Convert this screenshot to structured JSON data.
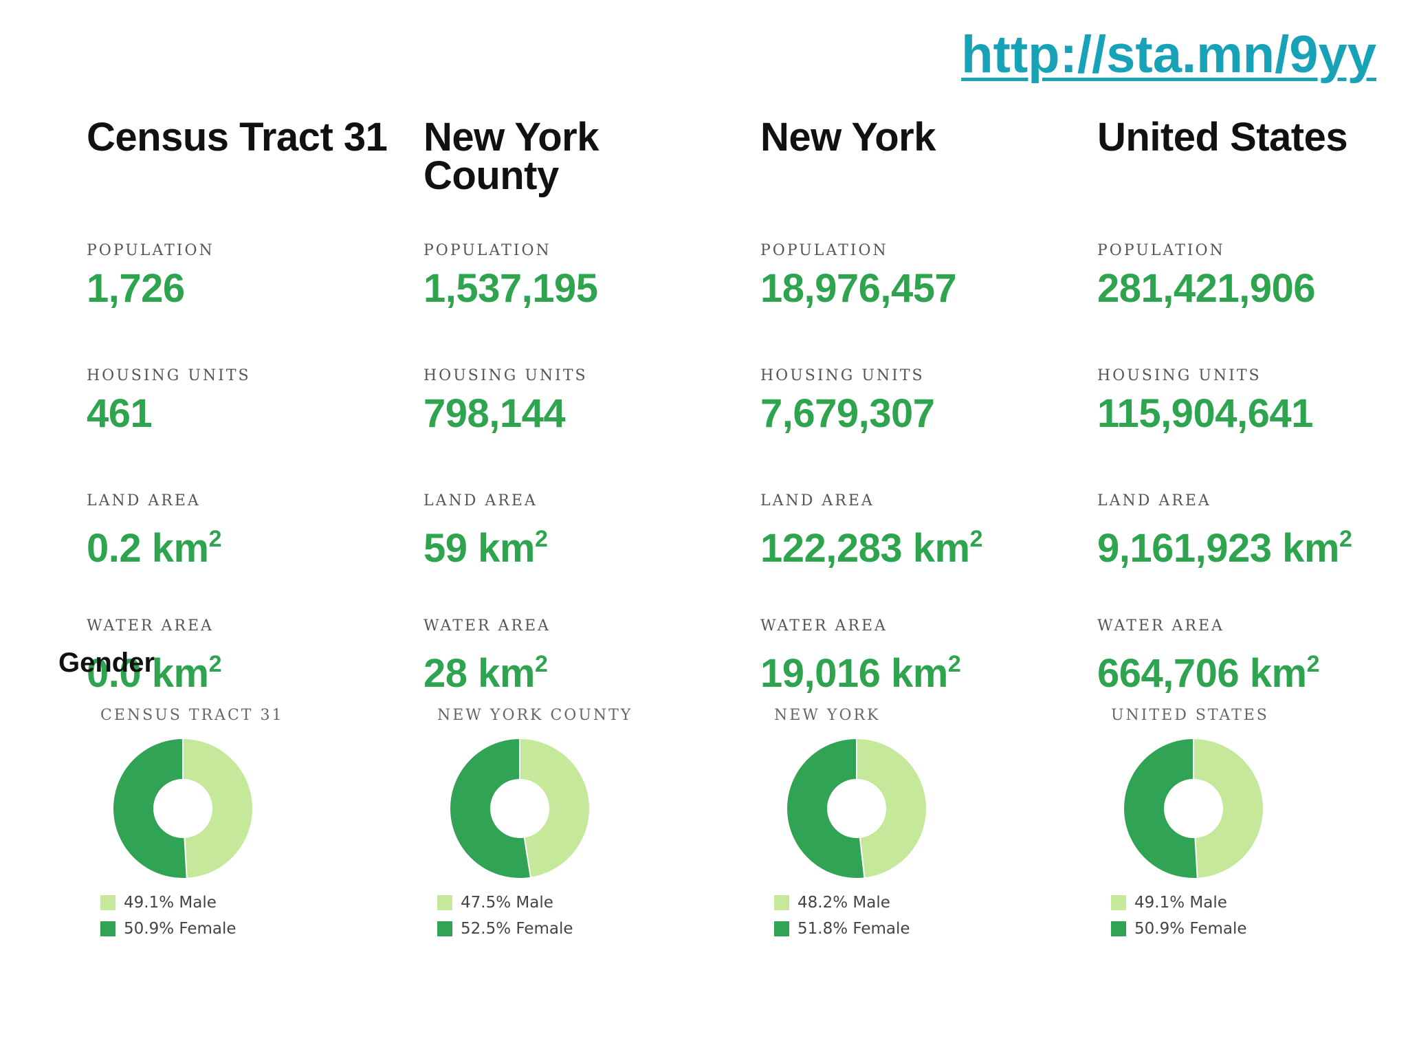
{
  "link": "http://sta.mn/9yy",
  "labels": {
    "population": "POPULATION",
    "housing": "HOUSING UNITS",
    "land": "LAND AREA",
    "water": "WATER AREA"
  },
  "columns": [
    {
      "title": "Census Tract 31",
      "population": "1,726",
      "housing": "461",
      "land": "0.2 km",
      "water": "0.0 km"
    },
    {
      "title": "New York County",
      "population": "1,537,195",
      "housing": "798,144",
      "land": "59 km",
      "water": "28 km"
    },
    {
      "title": "New York",
      "population": "18,976,457",
      "housing": "7,679,307",
      "land": "122,283 km",
      "water": "19,016 km"
    },
    {
      "title": "United States",
      "population": "281,421,906",
      "housing": "115,904,641",
      "land": "9,161,923 km",
      "water": "664,706 km"
    }
  ],
  "units_superscript": "2",
  "gender_title": "Gender",
  "colors": {
    "male": "#c5e89a",
    "female": "#31a354",
    "accent": "#2ea44f",
    "link": "#17a2b8"
  },
  "chart_data": [
    {
      "type": "pie",
      "title": "CENSUS TRACT 31",
      "categories": [
        "Male",
        "Female"
      ],
      "values": [
        49.1,
        50.9
      ],
      "legend": [
        "49.1% Male",
        "50.9% Female"
      ]
    },
    {
      "type": "pie",
      "title": "NEW YORK COUNTY",
      "categories": [
        "Male",
        "Female"
      ],
      "values": [
        47.5,
        52.5
      ],
      "legend": [
        "47.5% Male",
        "52.5% Female"
      ]
    },
    {
      "type": "pie",
      "title": "NEW YORK",
      "categories": [
        "Male",
        "Female"
      ],
      "values": [
        48.2,
        51.8
      ],
      "legend": [
        "48.2% Male",
        "51.8% Female"
      ]
    },
    {
      "type": "pie",
      "title": "UNITED STATES",
      "categories": [
        "Male",
        "Female"
      ],
      "values": [
        49.1,
        50.9
      ],
      "legend": [
        "49.1% Male",
        "50.9% Female"
      ]
    }
  ]
}
